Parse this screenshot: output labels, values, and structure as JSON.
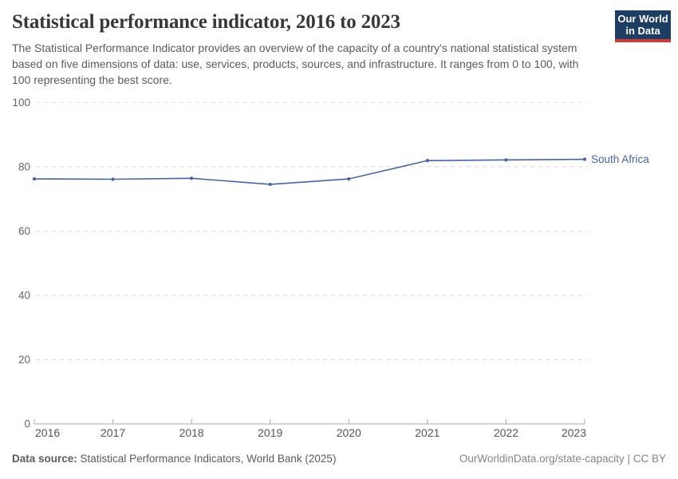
{
  "header": {
    "title": "Statistical performance indicator, 2016 to 2023",
    "subtitle": "The Statistical Performance Indicator provides an overview of the capacity of a country's national statistical system based on five dimensions of data: use, services, products, sources, and infrastructure. It ranges from 0 to 100, with 100 representing the best score."
  },
  "logo": {
    "line1": "Our World",
    "line2": "in Data",
    "bg_color": "#1d3d63",
    "accent_color": "#cf3b32"
  },
  "chart_data": {
    "type": "line",
    "title": "Statistical performance indicator, 2016 to 2023",
    "x": [
      2016,
      2017,
      2018,
      2019,
      2020,
      2021,
      2022,
      2023
    ],
    "series": [
      {
        "name": "South Africa",
        "values": [
          76.2,
          76.1,
          76.4,
          74.5,
          76.2,
          81.9,
          82.1,
          82.3
        ]
      }
    ],
    "end_label": "South Africa",
    "xlabel": "",
    "ylabel": "",
    "ylim": [
      0,
      100
    ],
    "yticks": [
      0,
      20,
      40,
      60,
      80,
      100
    ],
    "grid": "horizontal-dashed",
    "legend": "line-end-label"
  },
  "footer": {
    "source_label": "Data source:",
    "source_text": "Statistical Performance Indicators, World Bank (2025)",
    "right_text": "OurWorldinData.org/state-capacity | CC BY"
  },
  "colors": {
    "line": "#4a63a0",
    "grid": "#dcdcdc",
    "axis": "#a8a8a8",
    "ytick_label": "#666666",
    "xtick_label": "#565656",
    "end_label": "#4a63a0",
    "footer_right": "#858585"
  }
}
